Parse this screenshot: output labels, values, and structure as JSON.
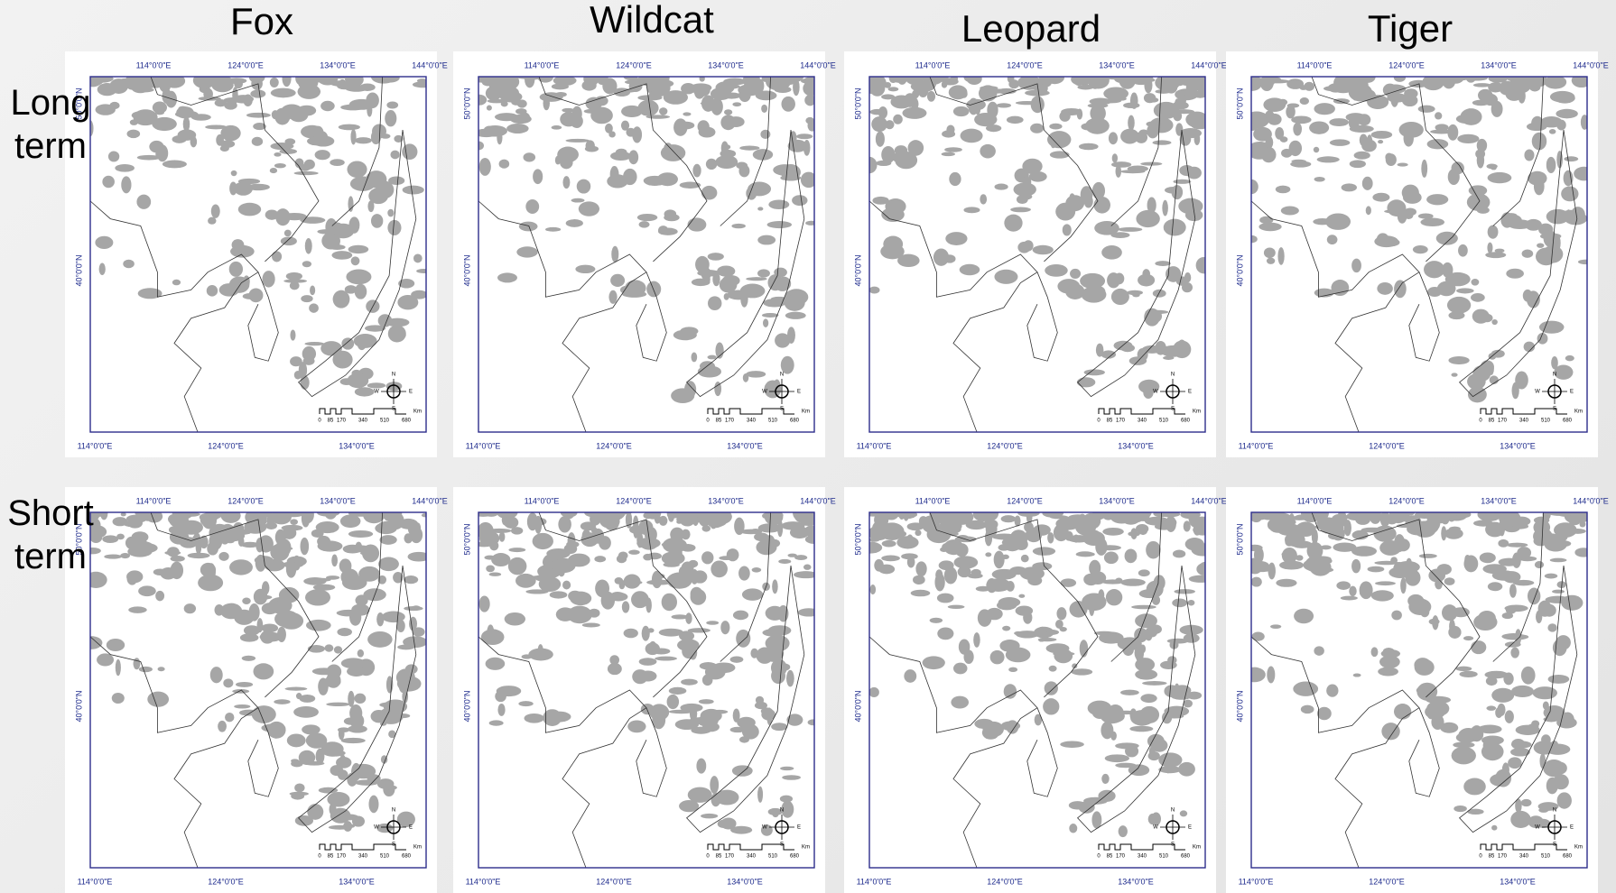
{
  "columns": [
    "Fox",
    "Wildcat",
    "Leopard",
    "Tiger"
  ],
  "rows": [
    "Long term",
    "Short term"
  ],
  "map_labels": {
    "top_ticks": [
      "114°0'0\"E",
      "124°0'0\"E",
      "134°0'0\"E",
      "144°0'0\"E"
    ],
    "bottom_ticks": [
      "114°0'0\"E",
      "124°0'0\"E",
      "134°0'0\"E"
    ],
    "side_ticks": [
      "50°0'0\"N",
      "40°0'0\"N"
    ],
    "scale_ticks": [
      "0",
      "85",
      "170",
      "340",
      "510",
      "680"
    ],
    "scale_unit": "Km",
    "compass": [
      "N",
      "E",
      "S",
      "W"
    ]
  }
}
